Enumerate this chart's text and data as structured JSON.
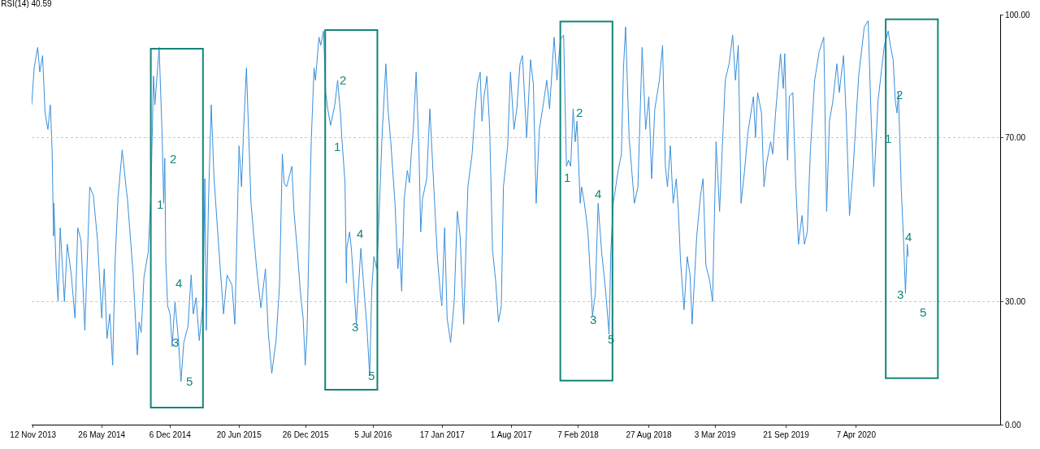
{
  "chart_data": {
    "type": "line",
    "title": "RSI(14) 40.59",
    "x": [
      "2013-11-08",
      "2013-11-15",
      "2013-11-25",
      "2013-12-01",
      "2013-12-09",
      "2013-12-16",
      "2013-12-24",
      "2013-12-31",
      "2014-01-05",
      "2014-01-09",
      "2014-01-10",
      "2014-01-17",
      "2014-01-22",
      "2014-01-28",
      "2014-02-09",
      "2014-02-17",
      "2014-02-28",
      "2014-03-11",
      "2014-03-19",
      "2014-03-28",
      "2014-04-08",
      "2014-04-22",
      "2014-05-02",
      "2014-05-14",
      "2014-05-26",
      "2014-06-02",
      "2014-06-10",
      "2014-06-18",
      "2014-06-26",
      "2014-07-03",
      "2014-07-11",
      "2014-07-23",
      "2014-08-03",
      "2014-08-07",
      "2014-08-23",
      "2014-09-04",
      "2014-09-09",
      "2014-09-15",
      "2014-09-23",
      "2014-10-05",
      "2014-10-13",
      "2014-10-20",
      "2014-10-24",
      "2014-11-05",
      "2014-11-13",
      "2014-11-18",
      "2014-11-21",
      "2014-11-24",
      "2014-11-29",
      "2014-12-06",
      "2014-12-12",
      "2014-12-20",
      "2014-12-30",
      "2015-01-06",
      "2015-01-14",
      "2015-01-26",
      "2015-02-04",
      "2015-02-10",
      "2015-02-18",
      "2015-02-27",
      "2015-03-10",
      "2015-03-15",
      "2015-03-19",
      "2015-03-25",
      "2015-04-02",
      "2015-04-10",
      "2015-04-26",
      "2015-05-07",
      "2015-05-17",
      "2015-05-31",
      "2015-06-08",
      "2015-06-20",
      "2015-06-27",
      "2015-07-03",
      "2015-07-11",
      "2015-07-24",
      "2015-08-09",
      "2015-08-21",
      "2015-09-03",
      "2015-09-11",
      "2015-09-21",
      "2015-10-03",
      "2015-10-13",
      "2015-10-21",
      "2015-10-26",
      "2015-11-02",
      "2015-11-17",
      "2015-11-23",
      "2015-12-03",
      "2015-12-11",
      "2015-12-19",
      "2015-12-25",
      "2015-12-30",
      "2016-01-07",
      "2016-01-11",
      "2016-01-19",
      "2016-01-23",
      "2016-02-02",
      "2016-02-07",
      "2016-02-15",
      "2016-02-21",
      "2016-02-27",
      "2016-03-06",
      "2016-03-18",
      "2016-03-26",
      "2016-04-03",
      "2016-04-07",
      "2016-04-16",
      "2016-04-20",
      "2016-04-21",
      "2016-04-29",
      "2016-05-04",
      "2016-05-14",
      "2016-05-18",
      "2016-05-31",
      "2016-06-08",
      "2016-06-17",
      "2016-06-25",
      "2016-07-01",
      "2016-07-07",
      "2016-07-15",
      "2016-07-20",
      "2016-07-30",
      "2016-08-10",
      "2016-08-16",
      "2016-08-24",
      "2016-09-05",
      "2016-09-13",
      "2016-09-18",
      "2016-09-24",
      "2016-10-01",
      "2016-10-10",
      "2016-10-16",
      "2016-10-22",
      "2016-10-27",
      "2016-11-04",
      "2016-11-12",
      "2016-11-17",
      "2016-11-22",
      "2016-12-04",
      "2016-12-13",
      "2016-12-23",
      "2017-01-04",
      "2017-01-12",
      "2017-01-16",
      "2017-01-24",
      "2017-01-31",
      "2017-02-10",
      "2017-02-20",
      "2017-03-01",
      "2017-03-09",
      "2017-03-19",
      "2017-03-31",
      "2017-04-12",
      "2017-04-19",
      "2017-04-27",
      "2017-05-05",
      "2017-05-10",
      "2017-05-16",
      "2017-05-24",
      "2017-06-01",
      "2017-06-09",
      "2017-06-18",
      "2017-06-26",
      "2017-07-04",
      "2017-07-10",
      "2017-07-22",
      "2017-07-30",
      "2017-08-09",
      "2017-08-17",
      "2017-08-26",
      "2017-09-02",
      "2017-09-14",
      "2017-09-25",
      "2017-10-03",
      "2017-10-11",
      "2017-10-20",
      "2017-10-31",
      "2017-11-10",
      "2017-11-18",
      "2017-12-01",
      "2017-12-09",
      "2017-12-19",
      "2017-12-28",
      "2018-01-05",
      "2018-01-11",
      "2018-01-17",
      "2018-01-24",
      "2018-01-30",
      "2018-02-04",
      "2018-02-13",
      "2018-02-17",
      "2018-02-25",
      "2018-03-07",
      "2018-03-20",
      "2018-03-28",
      "2018-04-05",
      "2018-04-15",
      "2018-04-26",
      "2018-05-06",
      "2018-05-11",
      "2018-05-18",
      "2018-06-01",
      "2018-06-10",
      "2018-06-16",
      "2018-06-22",
      "2018-07-02",
      "2018-07-17",
      "2018-07-27",
      "2018-08-08",
      "2018-08-18",
      "2018-08-27",
      "2018-09-04",
      "2018-09-13",
      "2018-09-26",
      "2018-10-05",
      "2018-10-13",
      "2018-10-19",
      "2018-10-27",
      "2018-11-04",
      "2018-11-13",
      "2018-11-19",
      "2018-11-25",
      "2018-12-05",
      "2018-12-14",
      "2018-12-22",
      "2018-12-28",
      "2019-01-10",
      "2019-01-21",
      "2019-01-28",
      "2019-02-05",
      "2019-02-16",
      "2019-02-24",
      "2019-03-06",
      "2019-03-16",
      "2019-04-01",
      "2019-04-12",
      "2019-04-22",
      "2019-04-30",
      "2019-05-08",
      "2019-05-16",
      "2019-05-26",
      "2019-06-04",
      "2019-06-20",
      "2019-06-26",
      "2019-07-02",
      "2019-07-13",
      "2019-07-20",
      "2019-07-28",
      "2019-08-08",
      "2019-08-14",
      "2019-08-22",
      "2019-09-05",
      "2019-09-13",
      "2019-09-17",
      "2019-09-25",
      "2019-09-30",
      "2019-10-10",
      "2019-10-18",
      "2019-10-26",
      "2019-11-05",
      "2019-11-12",
      "2019-11-20",
      "2019-11-29",
      "2019-12-11",
      "2019-12-24",
      "2020-01-06",
      "2020-01-14",
      "2020-01-22",
      "2020-02-01",
      "2020-02-12",
      "2020-02-19",
      "2020-03-02",
      "2020-03-10",
      "2020-03-19",
      "2020-03-29",
      "2020-04-14",
      "2020-04-30",
      "2020-05-11",
      "2020-05-19",
      "2020-05-27",
      "2020-06-08",
      "2020-06-26",
      "2020-07-07",
      "2020-07-13",
      "2020-07-21",
      "2020-07-27",
      "2020-08-01",
      "2020-08-05",
      "2020-08-13",
      "2020-08-19",
      "2020-08-25",
      "2020-08-30",
      "2020-09-02"
    ],
    "series": [
      {
        "color": "#3a8fdc",
        "values": [
          78,
          87,
          92,
          86,
          90,
          76,
          72,
          78,
          67,
          46,
          54,
          37,
          30,
          48,
          30,
          44,
          37,
          26,
          48,
          45,
          23,
          58,
          56,
          45,
          26,
          38,
          21,
          27,
          14.5,
          40,
          55,
          67,
          58,
          55,
          37,
          17,
          25,
          22.5,
          36,
          42,
          57,
          85,
          78,
          92,
          72,
          54,
          65,
          40,
          29,
          27,
          19,
          30,
          20.5,
          10.5,
          20,
          24,
          36.5,
          27,
          31,
          20.5,
          30,
          60,
          23,
          54,
          78,
          60,
          40,
          27,
          36.5,
          34,
          24.5,
          68,
          58,
          72,
          87,
          54,
          38,
          28.5,
          38,
          22.5,
          12.5,
          20.5,
          34,
          66,
          59,
          58,
          63,
          52,
          42,
          32.5,
          26,
          14.5,
          22,
          54,
          69,
          87,
          84,
          94.5,
          92.5,
          96,
          81,
          77,
          73,
          78,
          84,
          76,
          70,
          59,
          34.5,
          43,
          47,
          43,
          30,
          24.5,
          43,
          34,
          24,
          12,
          33,
          41,
          38,
          47,
          70,
          88,
          77,
          69,
          54,
          38,
          43,
          32.5,
          55,
          62,
          59,
          67,
          72,
          86,
          67,
          47,
          55,
          60,
          77,
          60,
          40,
          32,
          29,
          48,
          26,
          20,
          30,
          52,
          46,
          24.5,
          58,
          66,
          75,
          83,
          86,
          74,
          80,
          85,
          72,
          42.5,
          35,
          25,
          29,
          58,
          68,
          86,
          72,
          77,
          88,
          90,
          70,
          89,
          83,
          54,
          72,
          78,
          84,
          77,
          94.5,
          84,
          94,
          95,
          63,
          64.5,
          63,
          77,
          69,
          74,
          54,
          58,
          54,
          47,
          26.5,
          32,
          54,
          42,
          33,
          22,
          42,
          54,
          62,
          66,
          87,
          97,
          70,
          54,
          58,
          92,
          72,
          80,
          60,
          77,
          84,
          92.5,
          63,
          58,
          68,
          54,
          60,
          52,
          40,
          28,
          41,
          36.5,
          24.5,
          46,
          56,
          60,
          39,
          35,
          30,
          69,
          52,
          84,
          88,
          95,
          84,
          92.5,
          54,
          62,
          71,
          80,
          70,
          81,
          76,
          58,
          64,
          69,
          66,
          76,
          90.5,
          82,
          90.5,
          64.5,
          80,
          81,
          59.5,
          44,
          51,
          44,
          47,
          67,
          84,
          91,
          94.5,
          52,
          74,
          79,
          88,
          81,
          90,
          74.5,
          51,
          62,
          85,
          97,
          98.5,
          76,
          58,
          79,
          92.5,
          96,
          92.5,
          89,
          79,
          76,
          81,
          57.5,
          46,
          32,
          44,
          41
        ]
      }
    ],
    "xlim": [
      "2013-11-08",
      "2021-05-21"
    ],
    "xticks": [
      {
        "value": "2013-11-12",
        "label": "12 Nov 2013"
      },
      {
        "value": "2014-05-26",
        "label": "26 May 2014"
      },
      {
        "value": "2014-12-06",
        "label": "6 Dec 2014"
      },
      {
        "value": "2015-06-20",
        "label": "20 Jun 2015"
      },
      {
        "value": "2015-12-26",
        "label": "26 Dec 2015"
      },
      {
        "value": "2016-07-05",
        "label": "5 Jul 2016"
      },
      {
        "value": "2017-01-17",
        "label": "17 Jan 2017"
      },
      {
        "value": "2017-08-01",
        "label": "1 Aug 2017"
      },
      {
        "value": "2018-02-07",
        "label": "7 Feb 2018"
      },
      {
        "value": "2018-08-27",
        "label": "27 Aug 2018"
      },
      {
        "value": "2019-03-03",
        "label": "3 Mar 2019"
      },
      {
        "value": "2019-09-21",
        "label": "21 Sep 2019"
      },
      {
        "value": "2020-04-07",
        "label": "7 Apr 2020"
      }
    ],
    "ylim": [
      0,
      100
    ],
    "yticks": [
      {
        "value": 0,
        "label": "0.00"
      },
      {
        "value": 30,
        "label": "30.00"
      },
      {
        "value": 70,
        "label": "70.00"
      },
      {
        "value": 100,
        "label": "100.00"
      }
    ],
    "ref_lines": [
      {
        "axis": "y",
        "value": 30,
        "color": "#c8c8c8",
        "line_style": "dotted"
      },
      {
        "axis": "y",
        "value": 70,
        "color": "#c8c8c8",
        "line_style": "dotted"
      }
    ],
    "annotations": [
      "1",
      "2",
      "3",
      "4",
      "5",
      "1",
      "2",
      "3",
      "4",
      "5",
      "1",
      "2",
      "3",
      "4",
      "5",
      "1",
      "2",
      "3",
      "4",
      "5"
    ],
    "marker": "none",
    "line_style": "solid"
  }
}
